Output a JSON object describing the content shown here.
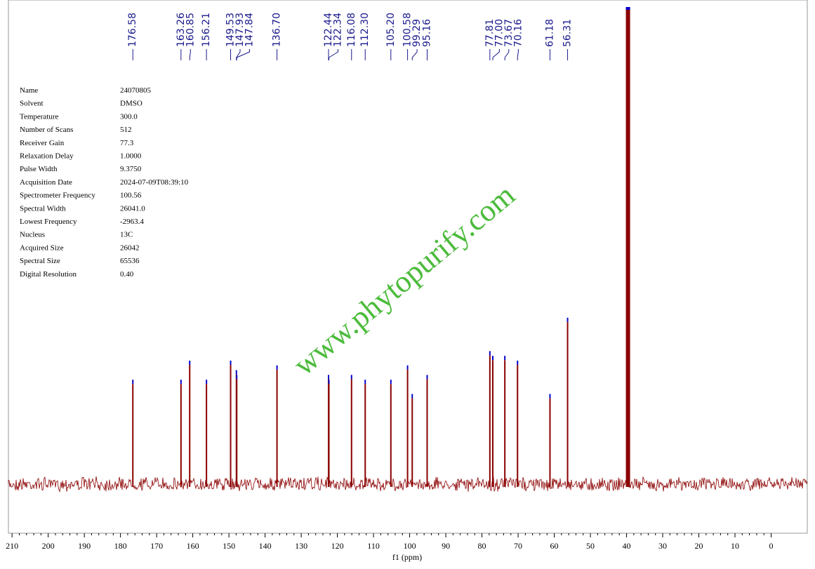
{
  "chart_data": {
    "type": "nmr",
    "x_axis_label": "f1 (ppm)",
    "xlim": [
      211,
      -10
    ],
    "xticks": [
      210,
      200,
      190,
      180,
      170,
      160,
      150,
      140,
      130,
      120,
      110,
      100,
      90,
      80,
      70,
      60,
      50,
      40,
      30,
      20,
      10,
      0
    ],
    "ylim": [
      0,
      100
    ],
    "color": "#8b0000",
    "label_color": "#1a1a8c",
    "peaks": {
      "x": [
        176.58,
        163.26,
        160.85,
        156.21,
        149.53,
        147.93,
        147.84,
        136.7,
        122.44,
        122.34,
        116.08,
        112.3,
        105.2,
        100.58,
        99.29,
        95.16,
        77.81,
        77.0,
        73.67,
        70.16,
        61.18,
        56.31
      ],
      "x_labels": [
        "176.58",
        "163.26",
        "160.85",
        "156.21",
        "149.53",
        "147.93",
        "147.84",
        "136.70",
        "122.44",
        "122.34",
        "116.08",
        "112.30",
        "105.20",
        "100.58",
        "99.29",
        "95.16",
        "77.81",
        "77.00",
        "73.67",
        "70.16",
        "61.18",
        "56.31"
      ],
      "values": [
        21,
        21,
        25,
        21,
        25,
        23,
        22,
        24,
        22,
        21,
        22,
        21,
        21,
        24,
        18,
        22,
        27,
        26,
        26,
        25,
        18,
        34
      ]
    },
    "solvent_peak": {
      "x": 39.6,
      "value": 100
    },
    "parameters": [
      {
        "label": "Name",
        "value": "24070805"
      },
      {
        "label": "Solvent",
        "value": "DMSO"
      },
      {
        "label": "Temperature",
        "value": "300.0"
      },
      {
        "label": "Number of Scans",
        "value": "512"
      },
      {
        "label": "Receiver Gain",
        "value": "77.3"
      },
      {
        "label": "Relaxation Delay",
        "value": "1.0000"
      },
      {
        "label": "Pulse Width",
        "value": "9.3750"
      },
      {
        "label": "Acquisition Date",
        "value": "2024-07-09T08:39:10"
      },
      {
        "label": "Spectrometer Frequency",
        "value": "100.56"
      },
      {
        "label": "Spectral Width",
        "value": "26041.0"
      },
      {
        "label": "Lowest Frequency",
        "value": "-2963.4"
      },
      {
        "label": "Nucleus",
        "value": "13C"
      },
      {
        "label": "Acquired Size",
        "value": "26042"
      },
      {
        "label": "Spectral Size",
        "value": "65536"
      },
      {
        "label": "Digital Resolution",
        "value": "0.40"
      }
    ],
    "watermark": "www.phytopurify.com"
  }
}
